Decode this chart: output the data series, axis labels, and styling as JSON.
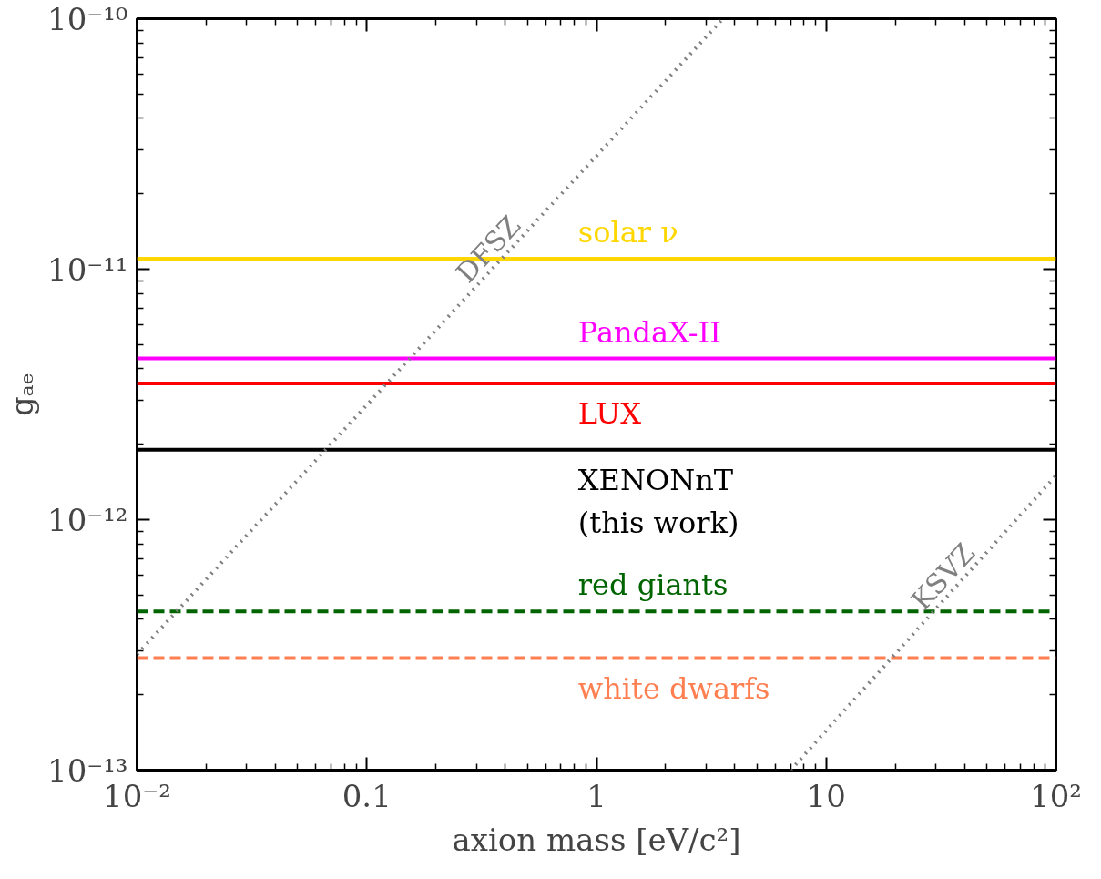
{
  "chart_data": {
    "type": "line",
    "xlabel": "axion mass [eV/c²]",
    "ylabel": "gₐₑ",
    "log": "xy",
    "grid": false,
    "xlim": [
      0.01,
      100
    ],
    "ylim": [
      1e-13,
      1e-10
    ],
    "xticks": [
      {
        "value": 0.01,
        "label": "10⁻²"
      },
      0.1,
      1,
      10,
      {
        "value": 100,
        "label": "10²"
      }
    ],
    "yticks": [
      {
        "value": 1e-13,
        "label": "10⁻¹³"
      },
      {
        "value": 1e-12,
        "label": "10⁻¹²"
      },
      {
        "value": 1e-11,
        "label": "10⁻¹¹"
      },
      {
        "value": 1e-10,
        "label": "10⁻¹⁰"
      }
    ],
    "series": [
      {
        "name": "solar ν",
        "color": "#ffd700",
        "x": [
          0.01,
          100
        ],
        "values": [
          1.1e-11,
          1.1e-11
        ],
        "line_style": "solid"
      },
      {
        "name": "PandaX-II",
        "color": "#ff00ff",
        "x": [
          0.01,
          100
        ],
        "values": [
          4.4e-12,
          4.4e-12
        ],
        "line_style": "solid"
      },
      {
        "name": "LUX",
        "color": "#ff0000",
        "x": [
          0.01,
          100
        ],
        "values": [
          3.5e-12,
          3.5e-12
        ],
        "line_style": "solid"
      },
      {
        "name": "XENONnT\n(this work)",
        "color": "#000000",
        "x": [
          0.01,
          100
        ],
        "values": [
          1.9e-12,
          1.9e-12
        ],
        "line_style": "solid"
      },
      {
        "name": "red giants",
        "color": "#006400",
        "x": [
          0.01,
          100
        ],
        "values": [
          4.3e-13,
          4.3e-13
        ],
        "line_style": "dashed"
      },
      {
        "name": "white dwarfs",
        "color": "#ff7f50",
        "x": [
          0.01,
          100
        ],
        "values": [
          2.8e-13,
          2.8e-13
        ],
        "line_style": "dashed"
      },
      {
        "name": "DFSZ",
        "color": "#808080",
        "x": [
          0.01,
          3.55
        ],
        "values": [
          2.9e-13,
          1e-10
        ],
        "line_style": "dotted"
      },
      {
        "name": "KSVZ",
        "color": "#808080",
        "x": [
          7,
          100
        ],
        "values": [
          1e-13,
          1.5e-12
        ],
        "line_style": "dotted"
      }
    ]
  }
}
